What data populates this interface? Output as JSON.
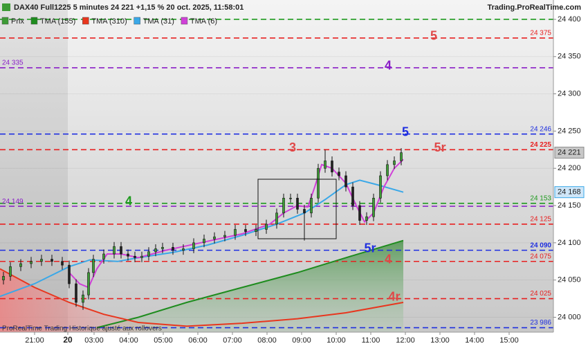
{
  "chart_data": {
    "type": "candlestick",
    "title": "DAX40 Full1225 5 minutes 24 221 +1,15 % 20 oct. 2025, 11:58:01",
    "source": "Trading.ProRealTime.com",
    "footer": "ProRealTime Trading  Historique ajusté aux rollovers",
    "xlim": [
      0.28,
      16.28
    ],
    "ylim": [
      23980,
      24426
    ],
    "xticks": [
      {
        "value": 1.28,
        "label": "21:00"
      },
      {
        "value": 2.24,
        "label": "20"
      },
      {
        "value": 3,
        "label": "03:00"
      },
      {
        "value": 4,
        "label": "04:00"
      },
      {
        "value": 5,
        "label": "05:00"
      },
      {
        "value": 6,
        "label": "06:00"
      },
      {
        "value": 7,
        "label": "07:00"
      },
      {
        "value": 8,
        "label": "08:00"
      },
      {
        "value": 9,
        "label": "09:00"
      },
      {
        "value": 10,
        "label": "10:00"
      },
      {
        "value": 11,
        "label": "11:00"
      },
      {
        "value": 12,
        "label": "12:00"
      },
      {
        "value": 13,
        "label": "13:00"
      },
      {
        "value": 14,
        "label": "14:00"
      },
      {
        "value": 15,
        "label": "15:00"
      }
    ],
    "yticks": [
      {
        "value": 24000,
        "label": "24 000"
      },
      {
        "value": 24050,
        "label": "24 050"
      },
      {
        "value": 24100,
        "label": "24 100"
      },
      {
        "value": 24150,
        "label": "24 150"
      },
      {
        "value": 24200,
        "label": "24 200"
      },
      {
        "value": 24250,
        "label": "24 250"
      },
      {
        "value": 24300,
        "label": "24 300"
      },
      {
        "value": 24350,
        "label": "24 350"
      },
      {
        "value": 24400,
        "label": "24 400"
      }
    ],
    "series": [
      {
        "name": "Prix",
        "type": "candlestick",
        "up_color": "#3d9b35",
        "down_color": "#222222",
        "last_label": "24 221",
        "x": [
          0.38,
          0.58,
          0.88,
          1.18,
          1.48,
          1.78,
          2.08,
          2.28,
          2.48,
          2.68,
          2.84,
          2.98,
          3.28,
          3.58,
          3.78,
          3.98,
          4.18,
          4.38,
          4.58,
          4.78,
          4.98,
          5.28,
          5.58,
          5.88,
          6.18,
          6.48,
          6.78,
          7.08,
          7.38,
          7.68,
          7.98,
          8.28,
          8.48,
          8.68,
          8.88,
          9.08,
          9.28,
          9.48,
          9.68,
          9.88,
          10.08,
          10.28,
          10.48,
          10.68,
          10.88,
          11.08,
          11.28,
          11.48,
          11.68,
          11.88
        ],
        "open": [
          24050,
          24055,
          24068,
          24072,
          24075,
          24078,
          24075,
          24070,
          24045,
          24020,
          24030,
          24060,
          24078,
          24085,
          24095,
          24085,
          24082,
          24080,
          24082,
          24088,
          24092,
          24094,
          24090,
          24092,
          24100,
          24105,
          24108,
          24110,
          24118,
          24115,
          24118,
          24125,
          24140,
          24160,
          24160,
          24145,
          24140,
          24160,
          24200,
          24210,
          24195,
          24190,
          24175,
          24150,
          24130,
          24135,
          24160,
          24190,
          24205,
          24210
        ],
        "high": [
          24061,
          24074,
          24078,
          24081,
          24084,
          24084,
          24081,
          24076,
          24051,
          24036,
          24066,
          24084,
          24091,
          24101,
          24101,
          24091,
          24088,
          24088,
          24094,
          24098,
          24100,
          24100,
          24098,
          24106,
          24111,
          24114,
          24116,
          24124,
          24124,
          24124,
          24131,
          24146,
          24166,
          24166,
          24166,
          24151,
          24166,
          24206,
          24225,
          24216,
          24201,
          24196,
          24181,
          24156,
          24141,
          24166,
          24196,
          24211,
          24216,
          24227
        ],
        "low": [
          24044,
          24049,
          24062,
          24066,
          24069,
          24069,
          24064,
          24039,
          24014,
          24010,
          24024,
          24054,
          24072,
          24079,
          24079,
          24076,
          24074,
          24074,
          24076,
          24082,
          24086,
          24084,
          24084,
          24086,
          24094,
          24099,
          24102,
          24104,
          24109,
          24109,
          24112,
          24119,
          24134,
          24154,
          24139,
          24103,
          24134,
          24154,
          24194,
          24189,
          24184,
          24169,
          24144,
          24124,
          24124,
          24129,
          24154,
          24184,
          24199,
          24204
        ],
        "close": [
          24055,
          24068,
          24072,
          24075,
          24078,
          24075,
          24070,
          24045,
          24020,
          24030,
          24060,
          24078,
          24085,
          24095,
          24085,
          24082,
          24080,
          24082,
          24088,
          24092,
          24094,
          24090,
          24092,
          24100,
          24105,
          24108,
          24110,
          24118,
          24115,
          24118,
          24125,
          24140,
          24160,
          24160,
          24145,
          24140,
          24160,
          24200,
          24210,
          24195,
          24190,
          24175,
          24150,
          24130,
          24135,
          24160,
          24190,
          24205,
          24210,
          24221
        ]
      },
      {
        "name": "TMA (155)",
        "color": "#1e8c1e",
        "fill": "green",
        "x": [
          3.08,
          4.28,
          5.68,
          7.28,
          8.88,
          10.28,
          11.94
        ],
        "values": [
          23986,
          24000,
          24020,
          24040,
          24060,
          24080,
          24103
        ]
      },
      {
        "name": "TMA (310)",
        "color": "#e8361e",
        "fill": "red",
        "x": [
          0.28,
          1.28,
          2.28,
          3.28,
          4.28,
          5.68,
          7.28,
          8.88,
          10.28,
          11.94
        ],
        "values": [
          24065,
          24040,
          24020,
          24004,
          23993,
          23988,
          23992,
          23998,
          24006,
          24020
        ]
      },
      {
        "name": "TMA (31)",
        "color": "#3aa8e8",
        "last_label": "24 168",
        "x": [
          0.28,
          1.28,
          2.28,
          2.88,
          3.68,
          4.28,
          5.28,
          6.28,
          7.28,
          8.28,
          9.08,
          9.68,
          10.28,
          10.68,
          11.18,
          11.94
        ],
        "values": [
          24028,
          24045,
          24068,
          24077,
          24075,
          24080,
          24087,
          24097,
          24110,
          24125,
          24140,
          24158,
          24178,
          24184,
          24178,
          24168
        ]
      },
      {
        "name": "TMA (6)",
        "color": "#d040d8",
        "x": [
          2.28,
          2.58,
          2.84,
          3.08,
          3.38,
          3.78,
          4.28,
          5.08,
          6.28,
          7.28,
          8.08,
          8.48,
          8.88,
          9.18,
          9.38,
          9.58,
          9.88,
          10.28,
          10.58,
          10.82,
          11.08,
          11.38,
          11.68,
          11.94
        ],
        "values": [
          24060,
          24045,
          24040,
          24065,
          24085,
          24085,
          24080,
          24090,
          24102,
          24112,
          24125,
          24140,
          24150,
          24148,
          24175,
          24205,
          24200,
          24180,
          24150,
          24128,
          24140,
          24175,
          24200,
          24212
        ]
      }
    ],
    "levels": [
      {
        "value": 24400,
        "color": "#1e9a1e"
      },
      {
        "value": 24375,
        "color": "#e82020",
        "label": "24 375",
        "tags": [
          "5"
        ]
      },
      {
        "value": 24335,
        "color": "#8a1ec8",
        "left_label": "24 335",
        "tags": [
          "4"
        ]
      },
      {
        "value": 24246,
        "color": "#1e2ee0",
        "label": "24 246",
        "tags": [
          "5"
        ]
      },
      {
        "value": 24225,
        "color": "#e82020",
        "label": "24 225",
        "tags": [
          "3",
          "5r"
        ]
      },
      {
        "value": 24153,
        "color": "#1e9a1e",
        "label": "24 153",
        "tags": [
          "4"
        ]
      },
      {
        "value": 24149,
        "color": "#8a1ec8",
        "left_label": "24 149"
      },
      {
        "value": 24125,
        "color": "#e82020",
        "label": "24 125"
      },
      {
        "value": 24090,
        "color": "#1e2ee0",
        "label": "24 090",
        "tags": [
          "5r"
        ]
      },
      {
        "value": 24075,
        "color": "#e82020",
        "label": "24 075",
        "tags": [
          "4"
        ]
      },
      {
        "value": 24025,
        "color": "#e82020",
        "label": "24 025",
        "tags": [
          "4r"
        ]
      },
      {
        "value": 23986,
        "color": "#1e2ee0",
        "label": "23 986"
      }
    ]
  }
}
